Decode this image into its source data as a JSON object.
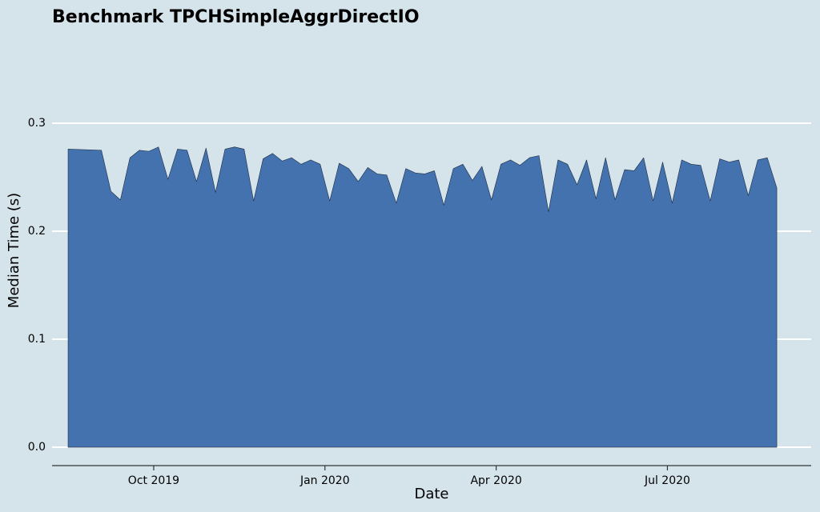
{
  "chart_data": {
    "type": "area",
    "title": "Benchmark TPCHSimpleAggrDirectIO",
    "x_label": "Date",
    "y_label": "Median Time (s)",
    "x": [
      "2019-08",
      "2019-09",
      "2019-09",
      "2019-09",
      "2019-09",
      "2019-09",
      "2019-09",
      "2019-10",
      "2019-10",
      "2019-10",
      "2019-10",
      "2019-10",
      "2019-10",
      "2019-11",
      "2019-11",
      "2019-11",
      "2019-11",
      "2019-11",
      "2019-11",
      "2019-12",
      "2019-12",
      "2019-12",
      "2019-12",
      "2019-12",
      "2019-12",
      "2020-01",
      "2020-01",
      "2020-01",
      "2020-01",
      "2020-01",
      "2020-01",
      "2020-02",
      "2020-02",
      "2020-02",
      "2020-02",
      "2020-02",
      "2020-02",
      "2020-03",
      "2020-03",
      "2020-03",
      "2020-03",
      "2020-03",
      "2020-03",
      "2020-04",
      "2020-04",
      "2020-04",
      "2020-04",
      "2020-04",
      "2020-04",
      "2020-05",
      "2020-05",
      "2020-05",
      "2020-05",
      "2020-05",
      "2020-05",
      "2020-06",
      "2020-06",
      "2020-06",
      "2020-06",
      "2020-06",
      "2020-06",
      "2020-07",
      "2020-07",
      "2020-07",
      "2020-07",
      "2020-07",
      "2020-07",
      "2020-08",
      "2020-08",
      "2020-08",
      "2020-08",
      "2020-08",
      "2020-08"
    ],
    "series": [
      {
        "name": "Median Time",
        "color": "#4472ae",
        "values": [
          0.276,
          0.275,
          0.237,
          0.229,
          0.268,
          0.275,
          0.274,
          0.278,
          0.248,
          0.276,
          0.275,
          0.246,
          0.277,
          0.236,
          0.276,
          0.278,
          0.276,
          0.228,
          0.267,
          0.272,
          0.265,
          0.268,
          0.262,
          0.266,
          0.262,
          0.228,
          0.263,
          0.258,
          0.246,
          0.259,
          0.253,
          0.252,
          0.226,
          0.258,
          0.254,
          0.253,
          0.256,
          0.224,
          0.258,
          0.262,
          0.247,
          0.26,
          0.229,
          0.262,
          0.266,
          0.261,
          0.268,
          0.27,
          0.218,
          0.266,
          0.262,
          0.243,
          0.266,
          0.23,
          0.268,
          0.229,
          0.257,
          0.256,
          0.268,
          0.228,
          0.264,
          0.226,
          0.266,
          0.262,
          0.261,
          0.228,
          0.267,
          0.264,
          0.266,
          0.233,
          0.266,
          0.268,
          0.24
        ]
      }
    ],
    "xlim": [
      "2019-08",
      "2020-09"
    ],
    "xticks": [
      {
        "value": "2019-10",
        "label": "Oct 2019"
      },
      {
        "value": "2020-01",
        "label": "Jan 2020"
      },
      {
        "value": "2020-04",
        "label": "Apr 2020"
      },
      {
        "value": "2020-07",
        "label": "Jul 2020"
      }
    ],
    "ylim": [
      -0.017,
      0.36
    ],
    "yticks": [
      {
        "value": 0,
        "label": "0.0"
      },
      0.1,
      0.2,
      0.3
    ],
    "grid": true
  }
}
